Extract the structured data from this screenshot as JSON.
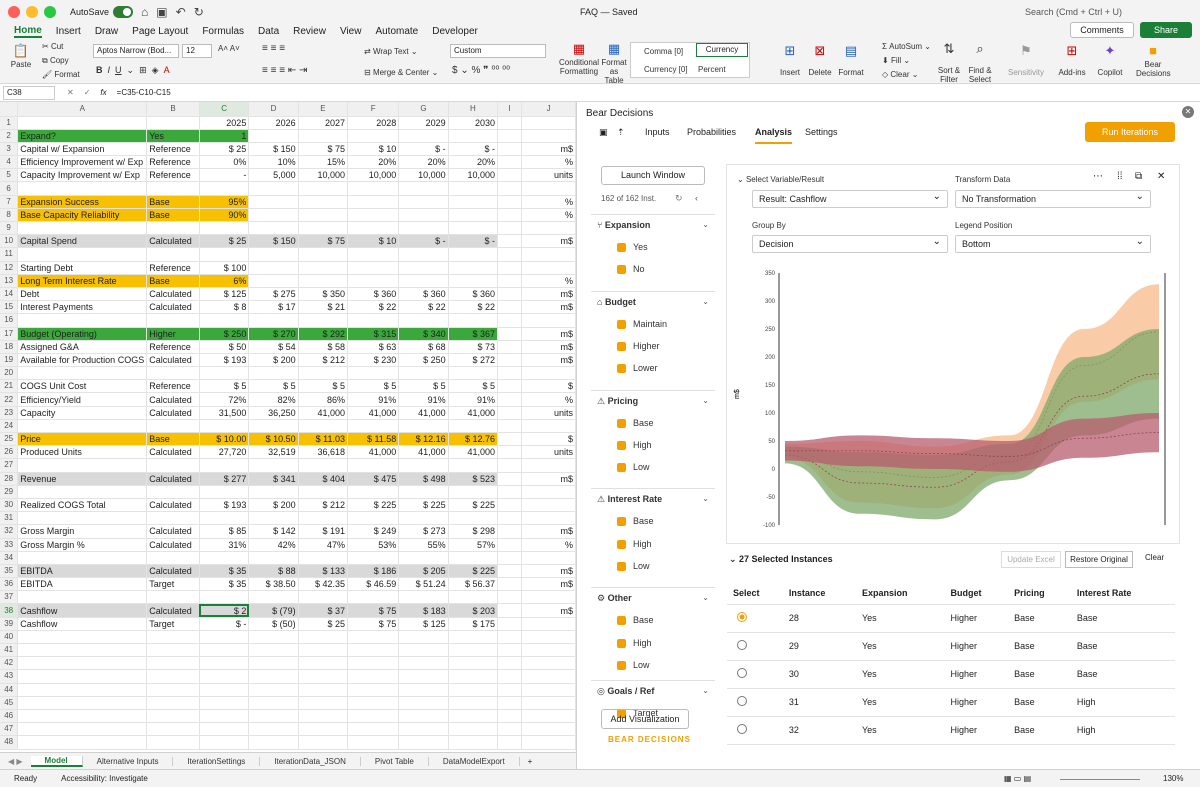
{
  "titlebar": {
    "autosave": "AutoSave",
    "doc": "FAQ — Saved",
    "search": "Search (Cmd + Ctrl + U)"
  },
  "menu": [
    "Home",
    "Insert",
    "Draw",
    "Page Layout",
    "Formulas",
    "Data",
    "Review",
    "View",
    "Automate",
    "Developer"
  ],
  "menu_right": {
    "comments": "Comments",
    "share": "Share"
  },
  "ribbon": {
    "paste": "Paste",
    "cut": "Cut",
    "copy": "Copy",
    "format": "Format",
    "font": "Aptos Narrow (Bod...",
    "size": "12",
    "wrap": "Wrap Text",
    "merge": "Merge & Center",
    "numfmt": "Custom",
    "cond": "Conditional Formatting",
    "fmt_table": "Format as Table",
    "comma": "Comma [0]",
    "currency": "Currency",
    "currency0": "Currency [0]",
    "percent": "Percent",
    "insert": "Insert",
    "delete": "Delete",
    "format2": "Format",
    "autosum": "AutoSum",
    "fill": "Fill",
    "clear": "Clear",
    "sort": "Sort & Filter",
    "find": "Find & Select",
    "sensitivity": "Sensitivity",
    "addins": "Add-ins",
    "copilot": "Copilot",
    "bear": "Bear Decisions"
  },
  "formula": {
    "cell": "C38",
    "fx": "fx",
    "value": "=C35-C10-C15"
  },
  "cols": [
    "A",
    "B",
    "C",
    "D",
    "E",
    "F",
    "G",
    "H",
    "I",
    "J"
  ],
  "rows": [
    {
      "n": "1",
      "cells": [
        "",
        "",
        "2025",
        "2026",
        "2027",
        "2028",
        "2029",
        "2030",
        "",
        ""
      ]
    },
    {
      "n": "2",
      "hl": "g",
      "hlcols": 3,
      "cells": [
        "Expand?",
        "Yes",
        "1",
        "",
        "",
        "",
        "",
        "",
        "",
        ""
      ]
    },
    {
      "n": "3",
      "cells": [
        "Capital w/ Expansion",
        "Reference",
        "$   25",
        "$   150",
        "$    75",
        "$    10",
        "$      -",
        "$      -",
        "",
        "m$"
      ]
    },
    {
      "n": "4",
      "cells": [
        "Efficiency Improvement w/ Exp",
        "Reference",
        "0%",
        "10%",
        "15%",
        "20%",
        "20%",
        "20%",
        "",
        "%"
      ]
    },
    {
      "n": "5",
      "cells": [
        "Capacity Improvement w/ Exp",
        "Reference",
        "-",
        "5,000",
        "10,000",
        "10,000",
        "10,000",
        "10,000",
        "",
        "units"
      ]
    },
    {
      "n": "6",
      "cells": [
        "",
        "",
        "",
        "",
        "",
        "",
        "",
        "",
        "",
        ""
      ]
    },
    {
      "n": "7",
      "hl": "y",
      "hlcols": 3,
      "cells": [
        "Expansion Success",
        "Base",
        "95%",
        "",
        "",
        "",
        "",
        "",
        "",
        "%"
      ]
    },
    {
      "n": "8",
      "hl": "y",
      "hlcols": 3,
      "cells": [
        "Base Capacity Reliability",
        "Base",
        "90%",
        "",
        "",
        "",
        "",
        "",
        "",
        "%"
      ]
    },
    {
      "n": "9",
      "cells": [
        "",
        "",
        "",
        "",
        "",
        "",
        "",
        "",
        "",
        ""
      ]
    },
    {
      "n": "10",
      "hl": "gr",
      "hlcols": 8,
      "cells": [
        "Capital Spend",
        "Calculated",
        "$   25",
        "$   150",
        "$    75",
        "$    10",
        "$      -",
        "$      -",
        "",
        "m$"
      ]
    },
    {
      "n": "11",
      "cells": [
        "",
        "",
        "",
        "",
        "",
        "",
        "",
        "",
        "",
        ""
      ]
    },
    {
      "n": "12",
      "cells": [
        "Starting Debt",
        "Reference",
        "$   100",
        "",
        "",
        "",
        "",
        "",
        "",
        ""
      ]
    },
    {
      "n": "13",
      "hl": "y",
      "hlcols": 3,
      "cells": [
        "Long Term Interest Rate",
        "Base",
        "6%",
        "",
        "",
        "",
        "",
        "",
        "",
        "%"
      ]
    },
    {
      "n": "14",
      "cells": [
        "Debt",
        "Calculated",
        "$   125",
        "$   275",
        "$   350",
        "$   360",
        "$   360",
        "$   360",
        "",
        "m$"
      ]
    },
    {
      "n": "15",
      "cells": [
        "Interest Payments",
        "Calculated",
        "$     8",
        "$    17",
        "$    21",
        "$    22",
        "$    22",
        "$    22",
        "",
        "m$"
      ]
    },
    {
      "n": "16",
      "cells": [
        "",
        "",
        "",
        "",
        "",
        "",
        "",
        "",
        "",
        ""
      ]
    },
    {
      "n": "17",
      "hl": "g",
      "hlcols": 8,
      "cells": [
        "Budget (Operating)",
        "Higher",
        "$   250",
        "$   270",
        "$   292",
        "$   315",
        "$   340",
        "$   367",
        "",
        "m$"
      ]
    },
    {
      "n": "18",
      "cells": [
        "Assigned G&A",
        "Reference",
        "$    50",
        "$    54",
        "$    58",
        "$    63",
        "$    68",
        "$    73",
        "",
        "m$"
      ]
    },
    {
      "n": "19",
      "cells": [
        "Available for Production COGS",
        "Calculated",
        "$   193",
        "$   200",
        "$   212",
        "$   230",
        "$   250",
        "$   272",
        "",
        "m$"
      ]
    },
    {
      "n": "20",
      "cells": [
        "",
        "",
        "",
        "",
        "",
        "",
        "",
        "",
        "",
        ""
      ]
    },
    {
      "n": "21",
      "cells": [
        "COGS Unit Cost",
        "Reference",
        "$     5",
        "$     5",
        "$     5",
        "$     5",
        "$     5",
        "$     5",
        "",
        "$"
      ]
    },
    {
      "n": "22",
      "cells": [
        "Efficiency/Yield",
        "Calculated",
        "72%",
        "82%",
        "86%",
        "91%",
        "91%",
        "91%",
        "",
        "%"
      ]
    },
    {
      "n": "23",
      "cells": [
        "Capacity",
        "Calculated",
        "31,500",
        "36,250",
        "41,000",
        "41,000",
        "41,000",
        "41,000",
        "",
        "units"
      ]
    },
    {
      "n": "24",
      "cells": [
        "",
        "",
        "",
        "",
        "",
        "",
        "",
        "",
        "",
        ""
      ]
    },
    {
      "n": "25",
      "hl": "y",
      "hlcols": 8,
      "cells": [
        "Price",
        "Base",
        "$  10.00",
        "$  10.50",
        "$  11.03",
        "$  11.58",
        "$  12.16",
        "$  12.76",
        "",
        "$"
      ]
    },
    {
      "n": "26",
      "cells": [
        "Produced Units",
        "Calculated",
        "27,720",
        "32,519",
        "36,618",
        "41,000",
        "41,000",
        "41,000",
        "",
        "units"
      ]
    },
    {
      "n": "27",
      "cells": [
        "",
        "",
        "",
        "",
        "",
        "",
        "",
        "",
        "",
        ""
      ]
    },
    {
      "n": "28",
      "hl": "gr",
      "hlcols": 8,
      "cells": [
        "Revenue",
        "Calculated",
        "$   277",
        "$   341",
        "$   404",
        "$   475",
        "$   498",
        "$   523",
        "",
        "m$"
      ]
    },
    {
      "n": "29",
      "cells": [
        "",
        "",
        "",
        "",
        "",
        "",
        "",
        "",
        "",
        ""
      ]
    },
    {
      "n": "30",
      "cells": [
        "Realized COGS Total",
        "Calculated",
        "$   193",
        "$   200",
        "$   212",
        "$   225",
        "$   225",
        "$   225",
        "",
        ""
      ]
    },
    {
      "n": "31",
      "cells": [
        "",
        "",
        "",
        "",
        "",
        "",
        "",
        "",
        "",
        ""
      ]
    },
    {
      "n": "32",
      "cells": [
        "Gross Margin",
        "Calculated",
        "$    85",
        "$   142",
        "$   191",
        "$   249",
        "$   273",
        "$   298",
        "",
        "m$"
      ]
    },
    {
      "n": "33",
      "cells": [
        "Gross Margin %",
        "Calculated",
        "31%",
        "42%",
        "47%",
        "53%",
        "55%",
        "57%",
        "",
        "%"
      ]
    },
    {
      "n": "34",
      "cells": [
        "",
        "",
        "",
        "",
        "",
        "",
        "",
        "",
        "",
        ""
      ]
    },
    {
      "n": "35",
      "hl": "gr",
      "hlcols": 8,
      "cells": [
        "EBITDA",
        "Calculated",
        "$    35",
        "$    88",
        "$   133",
        "$   186",
        "$   205",
        "$   225",
        "",
        "m$"
      ]
    },
    {
      "n": "36",
      "cells": [
        "EBITDA",
        "Target",
        "$    35",
        "$  38.50",
        "$  42.35",
        "$  46.59",
        "$  51.24",
        "$  56.37",
        "",
        "m$"
      ]
    },
    {
      "n": "37",
      "cells": [
        "",
        "",
        "",
        "",
        "",
        "",
        "",
        "",
        "",
        ""
      ]
    },
    {
      "n": "38",
      "hl": "gr",
      "hlcols": 8,
      "cells": [
        "Cashflow",
        "Calculated",
        "$     2",
        "$    (79)",
        "$    37",
        "$    75",
        "$   183",
        "$   203",
        "",
        "m$"
      ]
    },
    {
      "n": "39",
      "cells": [
        "Cashflow",
        "Target",
        "$      -",
        "$    (50)",
        "$    25",
        "$    75",
        "$   125",
        "$   175",
        "",
        ""
      ]
    },
    {
      "n": "40",
      "cells": [
        "",
        "",
        "",
        "",
        "",
        "",
        "",
        "",
        "",
        ""
      ]
    },
    {
      "n": "41",
      "cells": [
        "",
        "",
        "",
        "",
        "",
        "",
        "",
        "",
        "",
        ""
      ]
    },
    {
      "n": "42",
      "cells": [
        "",
        "",
        "",
        "",
        "",
        "",
        "",
        "",
        "",
        ""
      ]
    },
    {
      "n": "43",
      "cells": [
        "",
        "",
        "",
        "",
        "",
        "",
        "",
        "",
        "",
        ""
      ]
    },
    {
      "n": "44",
      "cells": [
        "",
        "",
        "",
        "",
        "",
        "",
        "",
        "",
        "",
        ""
      ]
    },
    {
      "n": "45",
      "cells": [
        "",
        "",
        "",
        "",
        "",
        "",
        "",
        "",
        "",
        ""
      ]
    },
    {
      "n": "46",
      "cells": [
        "",
        "",
        "",
        "",
        "",
        "",
        "",
        "",
        "",
        ""
      ]
    },
    {
      "n": "47",
      "cells": [
        "",
        "",
        "",
        "",
        "",
        "",
        "",
        "",
        "",
        ""
      ]
    },
    {
      "n": "48",
      "cells": [
        "",
        "",
        "",
        "",
        "",
        "",
        "",
        "",
        "",
        ""
      ]
    }
  ],
  "sheets": [
    "Model",
    "Alternative Inputs",
    "IterationSettings",
    "IterationData_JSON",
    "Pivot Table",
    "DataModelExport"
  ],
  "status": {
    "ready": "Ready",
    "access": "Accessibility: Investigate",
    "zoom": "130%"
  },
  "pane": {
    "title": "Bear Decisions",
    "tabs": [
      "Inputs",
      "Probabilities",
      "Analysis",
      "Settings"
    ],
    "run": "Run Iterations",
    "launch": "Launch Window",
    "count": "162 of 162 Inst.",
    "groups": [
      {
        "name": "Expansion",
        "opts": [
          "Yes",
          "No"
        ]
      },
      {
        "name": "Budget",
        "opts": [
          "Maintain",
          "Higher",
          "Lower"
        ]
      },
      {
        "name": "Pricing",
        "opts": [
          "Base",
          "High",
          "Low"
        ]
      },
      {
        "name": "Interest Rate",
        "opts": [
          "Base",
          "High",
          "Low"
        ]
      },
      {
        "name": "Other",
        "opts": [
          "Base",
          "High",
          "Low"
        ]
      },
      {
        "name": "Goals / Ref",
        "opts": [
          "Target"
        ]
      }
    ],
    "addviz": "Add Visualization",
    "brand": "BEAR DECISIONS",
    "viz": {
      "sel_label": "Select Variable/Result",
      "sel_value": "Result: Cashflow",
      "tr_label": "Transform Data",
      "tr_value": "No Transformation",
      "gb_label": "Group By",
      "gb_value": "Decision",
      "lp_label": "Legend Position",
      "lp_value": "Bottom",
      "ylabel": "m$"
    },
    "selected": "27 Selected Instances",
    "update": "Update Excel",
    "restore": "Restore Original",
    "clear": "Clear",
    "table": {
      "headers": [
        "Select",
        "Instance",
        "Expansion",
        "Budget",
        "Pricing",
        "Interest Rate"
      ],
      "rows": [
        [
          "28",
          "Yes",
          "Higher",
          "Base",
          "Base"
        ],
        [
          "29",
          "Yes",
          "Higher",
          "Base",
          "Base"
        ],
        [
          "30",
          "Yes",
          "Higher",
          "Base",
          "Base"
        ],
        [
          "31",
          "Yes",
          "Higher",
          "Base",
          "High"
        ],
        [
          "32",
          "Yes",
          "Higher",
          "Base",
          "High"
        ]
      ]
    }
  },
  "chart_data": {
    "type": "area",
    "ylabel": "m$",
    "ylim": [
      -100,
      350
    ],
    "yticks": [
      350,
      300,
      250,
      200,
      150,
      100,
      50,
      0,
      -50,
      -100
    ],
    "series": [
      {
        "color": "#f7b98a",
        "upper": [
          45,
          50,
          40,
          60,
          250,
          330
        ],
        "lower": [
          20,
          -60,
          -70,
          -10,
          120,
          160
        ]
      },
      {
        "color": "#7fa86a",
        "upper": [
          40,
          30,
          25,
          45,
          200,
          250
        ],
        "lower": [
          10,
          -80,
          -90,
          -20,
          60,
          90
        ]
      },
      {
        "color": "#b85c6e",
        "upper": [
          50,
          60,
          55,
          50,
          90,
          100
        ],
        "lower": [
          15,
          5,
          0,
          -5,
          20,
          30
        ]
      }
    ]
  }
}
